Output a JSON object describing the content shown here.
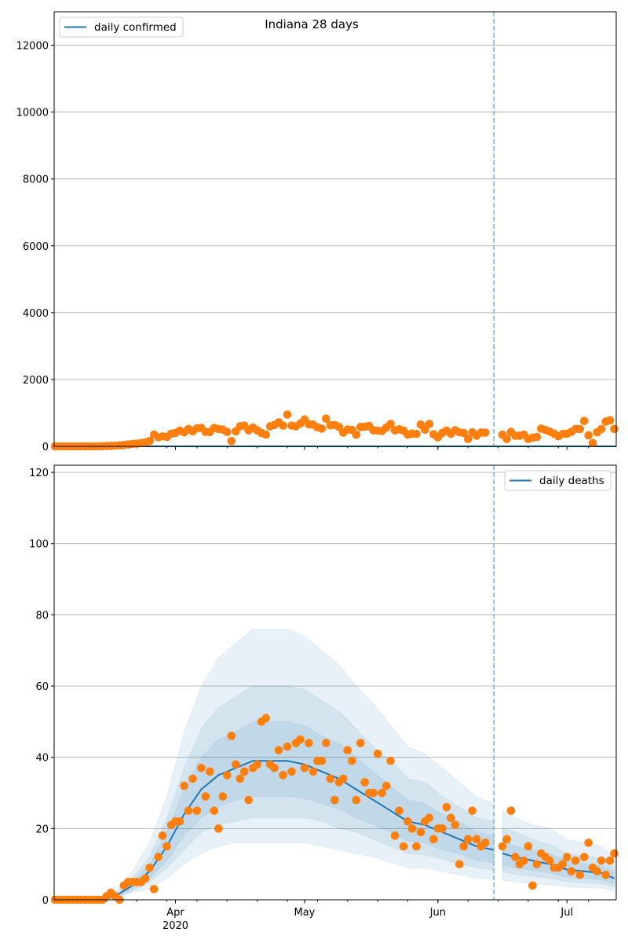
{
  "chart_data": [
    {
      "type": "scatter",
      "title": "Indiana 28 days",
      "legend": {
        "label": "daily confirmed",
        "placement": "top-left"
      },
      "x_start": "2020-03-04",
      "xlim_days": [
        -0.2,
        130.45
      ],
      "ylim": [
        0,
        13000
      ],
      "yticks": [
        0,
        2000,
        4000,
        6000,
        8000,
        10000,
        12000
      ],
      "grid": true,
      "forecast_start": "2020-06-14",
      "observed": [
        0,
        0,
        0,
        0,
        0,
        0,
        0,
        0,
        0,
        0,
        0,
        5,
        10,
        15,
        20,
        30,
        40,
        55,
        70,
        80,
        100,
        120,
        160,
        350,
        270,
        300,
        280,
        380,
        400,
        470,
        420,
        520,
        450,
        540,
        550,
        430,
        430,
        550,
        520,
        500,
        430,
        160,
        450,
        600,
        620,
        480,
        560,
        480,
        400,
        350,
        600,
        640,
        720,
        620,
        950,
        620,
        600,
        680,
        800,
        660,
        650,
        570,
        530,
        830,
        630,
        640,
        580,
        410,
        500,
        490,
        350,
        580,
        590,
        610,
        480,
        470,
        460,
        560,
        670,
        480,
        510,
        470,
        350,
        380,
        370,
        650,
        500,
        670,
        360,
        270,
        400,
        470,
        380,
        480,
        420,
        400,
        220,
        420,
        320,
        410,
        410,
        null,
        null,
        null,
        350,
        220,
        430,
        320,
        320,
        350,
        220,
        260,
        280,
        530,
        490,
        440,
        380,
        300,
        370,
        380,
        430,
        520,
        520,
        760,
        330,
        100,
        420,
        520,
        740,
        780,
        520
      ],
      "model_mean": [
        0,
        0
      ]
    },
    {
      "type": "scatter",
      "title": "",
      "legend": {
        "label": "daily deaths",
        "placement": "top-right"
      },
      "x_start": "2020-03-04",
      "xlim_days": [
        -0.2,
        130.45
      ],
      "ylim": [
        0,
        122
      ],
      "yticks": [
        0,
        20,
        40,
        60,
        80,
        100,
        120
      ],
      "xticks": [
        {
          "date": "2020-04-01",
          "label": "Apr",
          "sublabel": "2020"
        },
        {
          "date": "2020-05-01",
          "label": "May",
          "sublabel": ""
        },
        {
          "date": "2020-06-01",
          "label": "Jun",
          "sublabel": ""
        },
        {
          "date": "2020-07-01",
          "label": "Jul",
          "sublabel": ""
        }
      ],
      "grid": true,
      "forecast_start": "2020-06-14",
      "observed": [
        0,
        0,
        0,
        0,
        0,
        0,
        0,
        0,
        0,
        0,
        0,
        0,
        1,
        2,
        1,
        0,
        4,
        5,
        5,
        5,
        5,
        6,
        9,
        3,
        12,
        18,
        15,
        21,
        22,
        22,
        32,
        25,
        34,
        25,
        37,
        29,
        36,
        25,
        20,
        29,
        35,
        46,
        38,
        34,
        36,
        28,
        37,
        38,
        50,
        51,
        38,
        37,
        42,
        35,
        43,
        36,
        44,
        45,
        37,
        44,
        36,
        39,
        39,
        44,
        34,
        28,
        33,
        34,
        42,
        39,
        28,
        44,
        33,
        30,
        30,
        41,
        30,
        32,
        39,
        18,
        25,
        15,
        22,
        20,
        15,
        19,
        22,
        23,
        17,
        20,
        20,
        26,
        23,
        21,
        10,
        15,
        17,
        25,
        17,
        15,
        16,
        null,
        null,
        null,
        15,
        17,
        25,
        12,
        10,
        11,
        15,
        4,
        10,
        13,
        12,
        11,
        9,
        9,
        10,
        12,
        8,
        11,
        7,
        12,
        16,
        9,
        8,
        11,
        7,
        11,
        13
      ],
      "model": {
        "dates": [
          "2020-03-04",
          "2020-03-14",
          "2020-03-18",
          "2020-03-22",
          "2020-03-26",
          "2020-03-30",
          "2020-04-03",
          "2020-04-07",
          "2020-04-11",
          "2020-04-15",
          "2020-04-19",
          "2020-04-23",
          "2020-04-27",
          "2020-05-01",
          "2020-05-05",
          "2020-05-09",
          "2020-05-13",
          "2020-05-17",
          "2020-05-21",
          "2020-05-25",
          "2020-05-29",
          "2020-06-02",
          "2020-06-06",
          "2020-06-10",
          "2020-06-14",
          "2020-06-16",
          "2020-06-19",
          "2020-06-23",
          "2020-06-27",
          "2020-07-01",
          "2020-07-05",
          "2020-07-09",
          "2020-07-12"
        ],
        "segment_break_after": "2020-06-14",
        "mean": [
          0,
          0,
          1,
          4,
          8,
          15,
          24,
          31,
          35,
          37,
          39,
          39,
          39,
          38,
          36,
          34,
          31,
          28,
          25,
          22,
          21,
          19,
          17,
          15,
          14,
          13,
          12,
          11,
          10,
          8.5,
          8,
          7.5,
          6
        ],
        "outer_hi": [
          0,
          0,
          2,
          8,
          16,
          29,
          47,
          60,
          68,
          72,
          76,
          76,
          76,
          74,
          70,
          66,
          60,
          55,
          49,
          43,
          41,
          37,
          33,
          29,
          27,
          25,
          23,
          21,
          20,
          17,
          16,
          15,
          12
        ],
        "outer_lo": [
          0,
          0,
          0,
          2,
          3,
          6,
          10,
          13,
          15,
          16,
          16,
          16,
          16,
          16,
          15,
          14,
          13,
          12,
          10.5,
          9,
          9,
          8,
          7,
          6,
          6,
          5.5,
          5,
          4.6,
          4.2,
          3.6,
          3.4,
          3.2,
          2.5
        ],
        "mid_hi": [
          0,
          0,
          1.5,
          6,
          12,
          23,
          37,
          48,
          54,
          57,
          60,
          60,
          60,
          59,
          56,
          53,
          48,
          43,
          39,
          34,
          33,
          29,
          26,
          23,
          22,
          20,
          19,
          17,
          15.5,
          13,
          12.4,
          11.6,
          9.3
        ],
        "mid_lo": [
          0,
          0,
          0.6,
          2.4,
          5,
          9,
          14,
          19,
          21,
          22,
          23,
          23,
          23,
          23,
          22,
          20,
          19,
          17,
          15,
          13,
          12.6,
          11.4,
          10,
          9,
          8.4,
          7.8,
          7.2,
          6.6,
          6,
          5.1,
          4.8,
          4.5,
          3.6
        ],
        "inner_hi": [
          0,
          0,
          1.3,
          5,
          10,
          19,
          31,
          40,
          45,
          47,
          50,
          50,
          50,
          49,
          46,
          44,
          40,
          36,
          32,
          28,
          27,
          24,
          22,
          19,
          18,
          17,
          15,
          14,
          13,
          11,
          10,
          9.6,
          7.7
        ],
        "inner_lo": [
          0,
          0,
          0.75,
          3,
          6,
          11,
          18,
          23,
          26,
          28,
          29,
          29,
          29,
          28.5,
          27,
          25.5,
          23,
          21,
          19,
          16.5,
          16,
          14,
          13,
          11,
          10.5,
          9.8,
          9,
          8.3,
          7.5,
          6.4,
          6,
          5.6,
          4.5
        ]
      }
    }
  ],
  "colors": {
    "model": "#1f77b4",
    "observed": "#ff7f0e",
    "grid": "#b0b0b0",
    "forecast_line": "#7fb1d6"
  }
}
